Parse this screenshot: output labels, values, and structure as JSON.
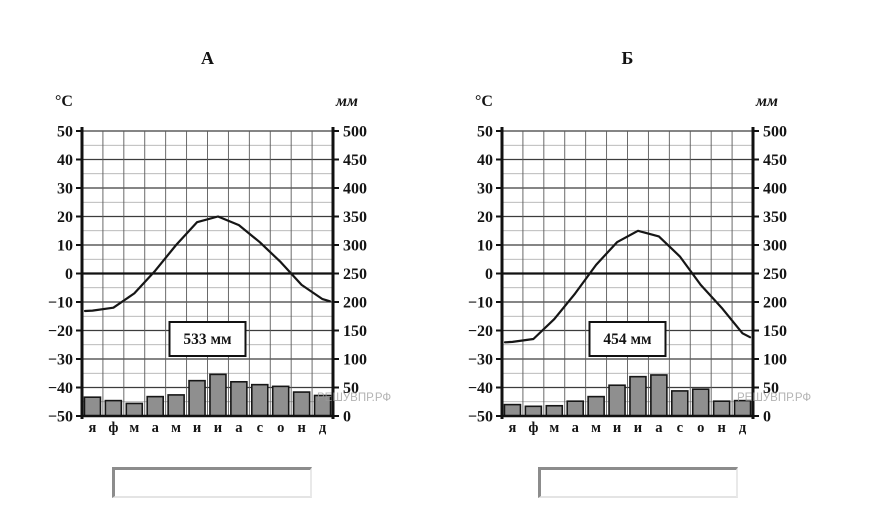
{
  "titles": {
    "a": "А",
    "b": "Б"
  },
  "answers": {
    "a": {
      "value": ""
    },
    "b": {
      "value": ""
    }
  },
  "chart_data": [
    {
      "type": "climograph (line + bar)",
      "title": "А",
      "categories": [
        "я",
        "ф",
        "м",
        "а",
        "м",
        "и",
        "и",
        "а",
        "с",
        "о",
        "н",
        "д"
      ],
      "series": [
        {
          "name": "temperature",
          "chart": "line",
          "unit": "°C",
          "values": [
            -13,
            -12,
            -7,
            1,
            10,
            18,
            20,
            17,
            11,
            4,
            -4,
            -9
          ]
        },
        {
          "name": "precipitation",
          "chart": "bar",
          "unit": "мм",
          "values": [
            33,
            27,
            22,
            34,
            37,
            62,
            73,
            60,
            55,
            52,
            42,
            36
          ]
        }
      ],
      "left_axis": {
        "unit": "°C",
        "min": -50,
        "max": 50,
        "step": 10
      },
      "right_axis": {
        "unit": "мм",
        "min": 0,
        "max": 500,
        "step": 50
      },
      "annotation": "533 мм",
      "watermark": "РЕШУВПР.РФ",
      "grid": true,
      "legend": false
    },
    {
      "type": "climograph (line + bar)",
      "title": "Б",
      "categories": [
        "я",
        "ф",
        "м",
        "а",
        "м",
        "и",
        "и",
        "а",
        "с",
        "о",
        "н",
        "д"
      ],
      "series": [
        {
          "name": "temperature",
          "chart": "line",
          "unit": "°C",
          "values": [
            -24,
            -23,
            -16,
            -7,
            3,
            11,
            15,
            13,
            6,
            -4,
            -12,
            -21
          ]
        },
        {
          "name": "precipitation",
          "chart": "bar",
          "unit": "мм",
          "values": [
            20,
            17,
            18,
            26,
            34,
            54,
            69,
            72,
            44,
            47,
            26,
            27
          ]
        }
      ],
      "left_axis": {
        "unit": "°C",
        "min": -50,
        "max": 50,
        "step": 10
      },
      "right_axis": {
        "unit": "мм",
        "min": 0,
        "max": 500,
        "step": 50
      },
      "annotation": "454 мм",
      "watermark": "РЕШУВПР.РФ",
      "grid": true,
      "legend": false
    }
  ]
}
